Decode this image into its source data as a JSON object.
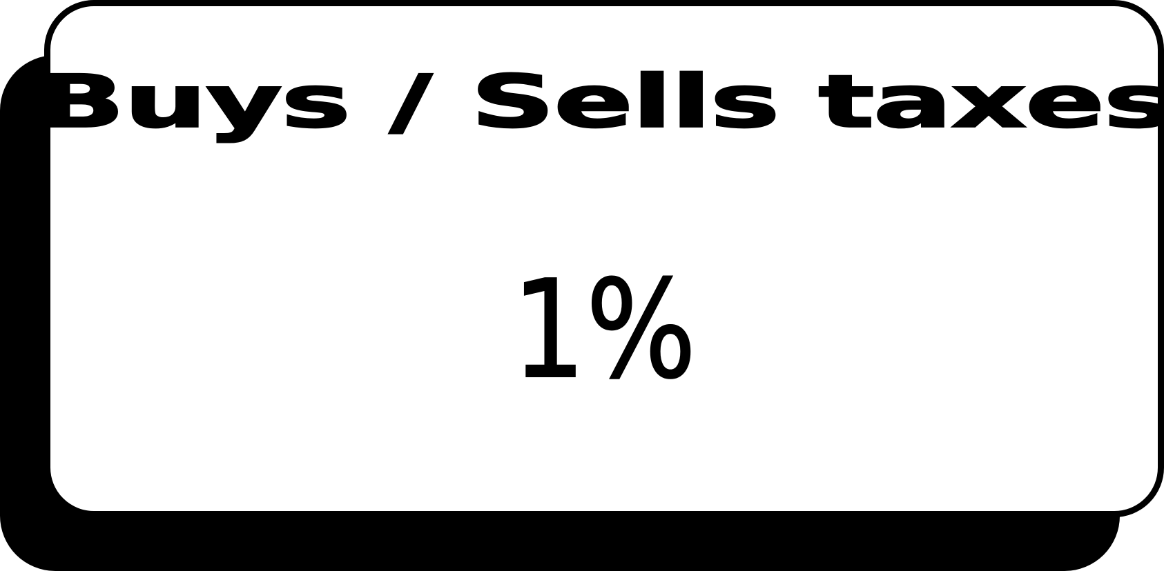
{
  "card": {
    "title": "Buys / Sells taxes",
    "value": "1%"
  },
  "colors": {
    "background": "#ffffff",
    "card_fill": "#ffffff",
    "card_border": "#000000",
    "shadow": "#000000",
    "text": "#000000"
  }
}
